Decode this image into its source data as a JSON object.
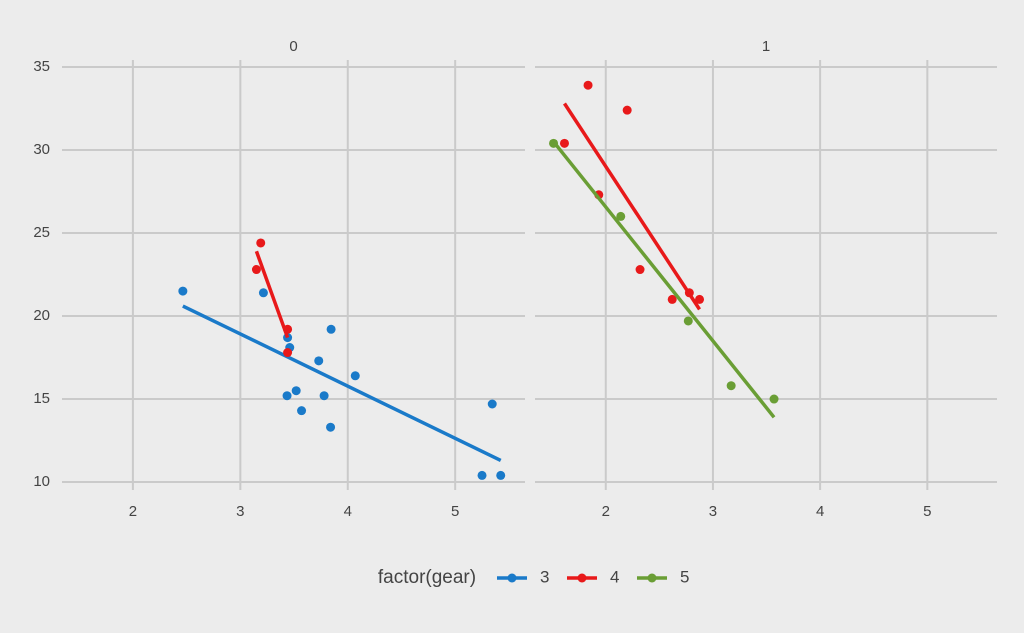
{
  "chart_data": {
    "type": "scatter",
    "grid": true,
    "legend": "bottom",
    "legend_title": "factor(gear)",
    "xlim": [
      1.34,
      5.65
    ],
    "xticks": [
      2,
      3,
      4,
      5
    ],
    "ylim": [
      9.52,
      35.42
    ],
    "yticks": [
      10,
      15,
      20,
      25,
      30,
      35
    ],
    "series": [
      {
        "name": "3",
        "color": "#1a7ac9"
      },
      {
        "name": "4",
        "color": "#e8191a"
      },
      {
        "name": "5",
        "color": "#6a9e35"
      }
    ],
    "facets": [
      {
        "title": "0",
        "series": [
          {
            "x": [
              3.215,
              3.44,
              3.46,
              3.57,
              4.07,
              3.73,
              3.78,
              5.25,
              5.424,
              5.345,
              3.52,
              3.435,
              3.84,
              3.845,
              2.465
            ],
            "values": [
              21.4,
              18.7,
              18.1,
              14.3,
              16.4,
              17.3,
              15.2,
              10.4,
              10.4,
              14.7,
              15.5,
              15.2,
              13.3,
              19.2,
              21.5
            ],
            "fit_x": [
              2.465,
              5.424
            ],
            "fit_y": [
              20.6,
              11.3
            ]
          },
          {
            "x": [
              3.19,
              3.15,
              3.44,
              3.44
            ],
            "values": [
              24.4,
              22.8,
              19.2,
              17.8
            ],
            "fit_x": [
              3.15,
              3.44
            ],
            "fit_y": [
              23.9,
              18.7
            ]
          },
          {
            "x": [],
            "values": [],
            "fit_x": [],
            "fit_y": []
          }
        ]
      },
      {
        "title": "1",
        "series": [
          {
            "x": [],
            "values": [],
            "fit_x": [],
            "fit_y": []
          },
          {
            "x": [
              2.62,
              2.875,
              2.32,
              2.2,
              1.615,
              1.835,
              1.935,
              2.78
            ],
            "values": [
              21,
              21,
              22.8,
              32.4,
              30.4,
              33.9,
              27.3,
              21.4
            ],
            "fit_x": [
              1.615,
              2.875
            ],
            "fit_y": [
              32.8,
              20.4
            ]
          },
          {
            "x": [
              2.14,
              1.513,
              3.17,
              2.77,
              3.57
            ],
            "values": [
              26,
              30.4,
              15.8,
              19.7,
              15
            ],
            "fit_x": [
              1.513,
              3.57
            ],
            "fit_y": [
              30.5,
              13.9
            ]
          }
        ]
      }
    ]
  }
}
